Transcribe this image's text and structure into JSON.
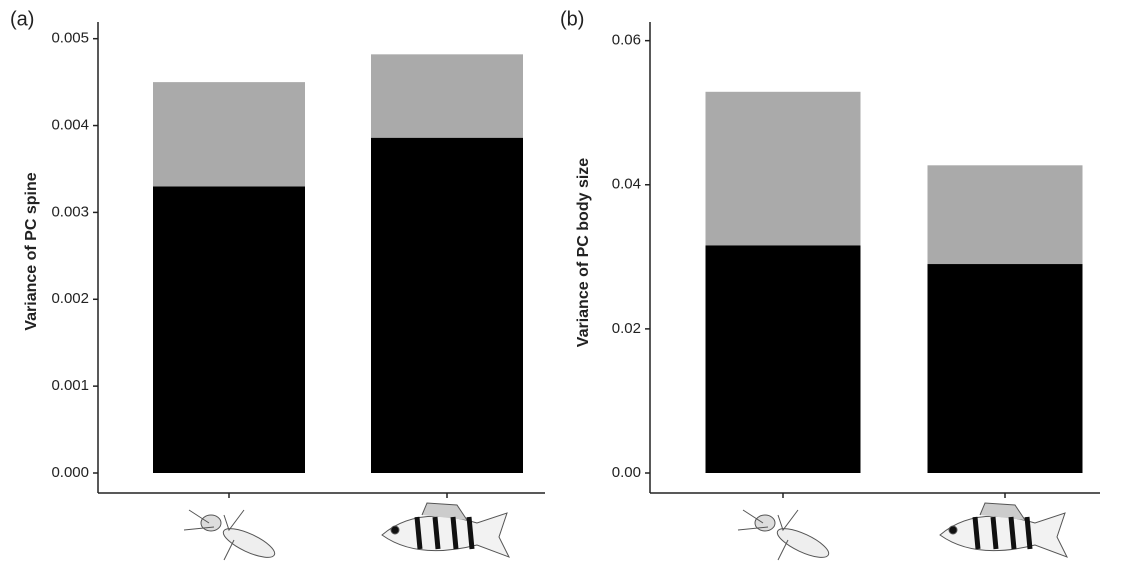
{
  "chart_data": [
    {
      "type": "stacked-bar",
      "panel_label": "(a)",
      "y_label": "Variance of PC spine",
      "categories": [
        null,
        null
      ],
      "series": [
        {
          "color": "#000000",
          "values": [
            0.0033,
            0.00386
          ]
        },
        {
          "color": "#aaaaaa",
          "values": [
            0.0012,
            0.00096
          ]
        }
      ],
      "ylim": [
        0,
        0.0051
      ],
      "yticks": [
        {
          "value": 0,
          "label": "0.000"
        },
        {
          "value": 0.001,
          "label": "0.001"
        },
        {
          "value": 0.002,
          "label": "0.002"
        },
        {
          "value": 0.003,
          "label": "0.003"
        },
        {
          "value": 0.004,
          "label": "0.004"
        },
        {
          "value": 0.005,
          "label": "0.005"
        }
      ]
    },
    {
      "type": "stacked-bar",
      "panel_label": "(b)",
      "y_label": "Variance of PC body size",
      "categories": [
        null,
        null
      ],
      "series": [
        {
          "color": "#000000",
          "values": [
            0.0316,
            0.029
          ]
        },
        {
          "color": "#aaaaaa",
          "values": [
            0.0213,
            0.0137
          ]
        }
      ],
      "ylim": [
        0,
        0.0612
      ],
      "yticks": [
        {
          "value": 0,
          "label": "0.00"
        },
        {
          "value": 0.02,
          "label": "0.02"
        },
        {
          "value": 0.04,
          "label": "0.04"
        },
        {
          "value": 0.06,
          "label": "0.06"
        }
      ]
    }
  ]
}
